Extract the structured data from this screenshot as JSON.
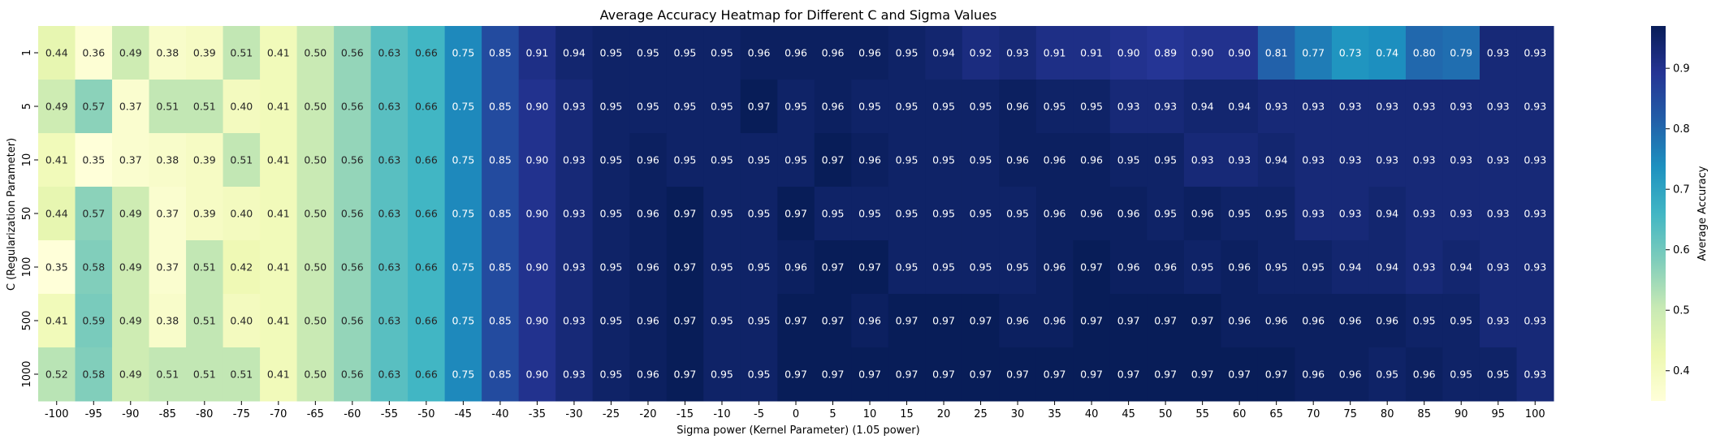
{
  "chart_data": {
    "type": "heatmap",
    "title": "Average Accuracy Heatmap for Different C and Sigma Values",
    "xlabel": "Sigma power (Kernel Parameter) (1.05 power)",
    "ylabel": "C (Regularization Parameter)",
    "colorbar_label": "Average Accuracy",
    "colorbar_ticks": [
      "0.4",
      "0.5",
      "0.6",
      "0.7",
      "0.8",
      "0.9"
    ],
    "colorbar_tick_values": [
      0.4,
      0.5,
      0.6,
      0.7,
      0.8,
      0.9
    ],
    "vmin": 0.35,
    "vmax": 0.97,
    "colormap": "YlGnBu",
    "x": [
      "-100",
      "-95",
      "-90",
      "-85",
      "-80",
      "-75",
      "-70",
      "-65",
      "-60",
      "-55",
      "-50",
      "-45",
      "-40",
      "-35",
      "-30",
      "-25",
      "-20",
      "-15",
      "-10",
      "-5",
      "0",
      "5",
      "10",
      "15",
      "20",
      "25",
      "30",
      "35",
      "40",
      "45",
      "50",
      "55",
      "60",
      "65",
      "70",
      "75",
      "80",
      "85",
      "90",
      "95",
      "100"
    ],
    "y": [
      "1",
      "5",
      "10",
      "50",
      "100",
      "500",
      "1000"
    ],
    "values": [
      [
        0.44,
        0.36,
        0.49,
        0.38,
        0.39,
        0.51,
        0.41,
        0.5,
        0.56,
        0.63,
        0.66,
        0.75,
        0.85,
        0.91,
        0.94,
        0.95,
        0.95,
        0.95,
        0.95,
        0.96,
        0.96,
        0.96,
        0.96,
        0.95,
        0.94,
        0.92,
        0.93,
        0.91,
        0.91,
        0.9,
        0.89,
        0.9,
        0.9,
        0.81,
        0.77,
        0.73,
        0.74,
        0.8,
        0.79,
        0.93,
        0.93
      ],
      [
        0.49,
        0.57,
        0.37,
        0.51,
        0.51,
        0.4,
        0.41,
        0.5,
        0.56,
        0.63,
        0.66,
        0.75,
        0.85,
        0.9,
        0.93,
        0.95,
        0.95,
        0.95,
        0.95,
        0.97,
        0.95,
        0.96,
        0.95,
        0.95,
        0.95,
        0.95,
        0.96,
        0.95,
        0.95,
        0.93,
        0.93,
        0.94,
        0.94,
        0.93,
        0.93,
        0.93,
        0.93,
        0.93,
        0.93,
        0.93,
        0.93
      ],
      [
        0.41,
        0.35,
        0.37,
        0.38,
        0.39,
        0.51,
        0.41,
        0.5,
        0.56,
        0.63,
        0.66,
        0.75,
        0.85,
        0.9,
        0.93,
        0.95,
        0.96,
        0.95,
        0.95,
        0.95,
        0.95,
        0.97,
        0.96,
        0.95,
        0.95,
        0.95,
        0.96,
        0.96,
        0.96,
        0.95,
        0.95,
        0.93,
        0.93,
        0.94,
        0.93,
        0.93,
        0.93,
        0.93,
        0.93,
        0.93,
        0.93
      ],
      [
        0.44,
        0.57,
        0.49,
        0.37,
        0.39,
        0.4,
        0.41,
        0.5,
        0.56,
        0.63,
        0.66,
        0.75,
        0.85,
        0.9,
        0.93,
        0.95,
        0.96,
        0.97,
        0.95,
        0.95,
        0.97,
        0.95,
        0.95,
        0.95,
        0.95,
        0.95,
        0.95,
        0.96,
        0.96,
        0.96,
        0.95,
        0.96,
        0.95,
        0.95,
        0.93,
        0.93,
        0.94,
        0.93,
        0.93,
        0.93,
        0.93
      ],
      [
        0.35,
        0.58,
        0.49,
        0.37,
        0.51,
        0.42,
        0.41,
        0.5,
        0.56,
        0.63,
        0.66,
        0.75,
        0.85,
        0.9,
        0.93,
        0.95,
        0.96,
        0.97,
        0.95,
        0.95,
        0.96,
        0.97,
        0.97,
        0.95,
        0.95,
        0.95,
        0.95,
        0.96,
        0.97,
        0.96,
        0.96,
        0.95,
        0.96,
        0.95,
        0.95,
        0.94,
        0.94,
        0.93,
        0.94,
        0.93,
        0.93
      ],
      [
        0.41,
        0.59,
        0.49,
        0.38,
        0.51,
        0.4,
        0.41,
        0.5,
        0.56,
        0.63,
        0.66,
        0.75,
        0.85,
        0.9,
        0.93,
        0.95,
        0.96,
        0.97,
        0.95,
        0.95,
        0.97,
        0.97,
        0.96,
        0.97,
        0.97,
        0.97,
        0.96,
        0.96,
        0.97,
        0.97,
        0.97,
        0.97,
        0.96,
        0.96,
        0.96,
        0.96,
        0.96,
        0.95,
        0.95,
        0.93,
        0.93
      ],
      [
        0.52,
        0.58,
        0.49,
        0.51,
        0.51,
        0.51,
        0.41,
        0.5,
        0.56,
        0.63,
        0.66,
        0.75,
        0.85,
        0.9,
        0.93,
        0.95,
        0.96,
        0.97,
        0.95,
        0.95,
        0.97,
        0.97,
        0.97,
        0.97,
        0.97,
        0.97,
        0.97,
        0.97,
        0.97,
        0.97,
        0.97,
        0.97,
        0.97,
        0.97,
        0.96,
        0.96,
        0.95,
        0.96,
        0.95,
        0.95,
        0.93
      ]
    ]
  }
}
